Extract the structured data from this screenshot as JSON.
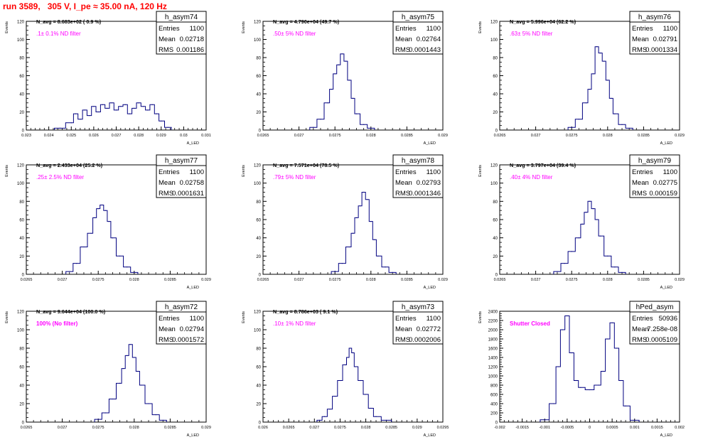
{
  "title": "run 3589,   305 V, I_pe ≈ 35.00 nA, 120 Hz",
  "colors": {
    "histogram": "#000080",
    "annotation": "#ff00ff",
    "title": "#ff0000",
    "frame": "#000000"
  },
  "chart_data": [
    {
      "type": "bar",
      "name": "h_asym74",
      "ylabel": "Events",
      "xlabel": "A_LED",
      "xlim": [
        0.023,
        0.031
      ],
      "ylim": [
        0,
        120
      ],
      "xticks": [
        "0.023",
        "0.024",
        "0.025",
        "0.026",
        "0.027",
        "0.028",
        "0.029",
        "0.03",
        "0.031"
      ],
      "yticks": [
        "0",
        "20",
        "40",
        "60",
        "80",
        "100",
        "120"
      ],
      "nav": "N_avg = 8.683e+02 ( 0.9 %)",
      "note": ".1± 0.1% ND filter",
      "stats": {
        "Entries": "1100",
        "Mean": "0.02718",
        "RMS": "0.001186"
      },
      "x": [
        0.0245,
        0.025,
        0.0252,
        0.0254,
        0.0256,
        0.0258,
        0.026,
        0.0262,
        0.0264,
        0.0266,
        0.0268,
        0.027,
        0.0272,
        0.0274,
        0.0276,
        0.0278,
        0.028,
        0.0282,
        0.0284,
        0.0286,
        0.0288,
        0.029,
        0.0293
      ],
      "values": [
        2,
        8,
        18,
        12,
        22,
        16,
        26,
        20,
        28,
        24,
        30,
        22,
        26,
        28,
        18,
        24,
        30,
        26,
        22,
        28,
        18,
        10,
        3
      ]
    },
    {
      "type": "bar",
      "name": "h_asym75",
      "ylabel": "Events",
      "xlabel": "A_LED",
      "xlim": [
        0.0265,
        0.029
      ],
      "ylim": [
        0,
        120
      ],
      "xticks": [
        "0.0265",
        "0.027",
        "0.0275",
        "0.028",
        "0.0285",
        "0.029"
      ],
      "yticks": [
        "0",
        "20",
        "40",
        "60",
        "80",
        "100",
        "120"
      ],
      "nav": "N_avg = 4.790e+04 (49.7 %)",
      "note": ".50± 5% ND filter",
      "stats": {
        "Entries": "1100",
        "Mean": "0.02764",
        "RMS": "0.0001443"
      },
      "x": [
        0.0272,
        0.0273,
        0.0274,
        0.02745,
        0.0275,
        0.02755,
        0.0276,
        0.02765,
        0.0277,
        0.02775,
        0.0278,
        0.0279,
        0.028
      ],
      "values": [
        3,
        12,
        30,
        45,
        62,
        72,
        84,
        76,
        55,
        35,
        18,
        6,
        2
      ]
    },
    {
      "type": "bar",
      "name": "h_asym76",
      "ylabel": "Events",
      "xlabel": "A_LED",
      "xlim": [
        0.0265,
        0.029
      ],
      "ylim": [
        0,
        120
      ],
      "xticks": [
        "0.0265",
        "0.027",
        "0.0275",
        "0.028",
        "0.0285",
        "0.029"
      ],
      "yticks": [
        "0",
        "20",
        "40",
        "60",
        "80",
        "100",
        "120"
      ],
      "nav": "N_avg = 5.996e+04 (62.2 %)",
      "note": ".63± 5% ND filter",
      "stats": {
        "Entries": "1100",
        "Mean": "0.02791",
        "RMS": "0.0001334"
      },
      "x": [
        0.0275,
        0.0276,
        0.0277,
        0.02775,
        0.0278,
        0.02785,
        0.0279,
        0.02795,
        0.028,
        0.02805,
        0.0281,
        0.0282,
        0.0283
      ],
      "values": [
        3,
        12,
        30,
        45,
        62,
        92,
        85,
        76,
        55,
        35,
        18,
        6,
        2
      ]
    },
    {
      "type": "bar",
      "name": "h_asym77",
      "ylabel": "Events",
      "xlabel": "A_LED",
      "xlim": [
        0.0265,
        0.029
      ],
      "ylim": [
        0,
        120
      ],
      "xticks": [
        "0.0265",
        "0.027",
        "0.0275",
        "0.028",
        "0.0285",
        "0.029"
      ],
      "yticks": [
        "0",
        "20",
        "40",
        "60",
        "80",
        "100",
        "120"
      ],
      "nav": "N_avg = 2.433e+04 (25.2 %)",
      "note": ".25± 2.5% ND filter",
      "stats": {
        "Entries": "1100",
        "Mean": "0.02758",
        "RMS": "0.0001631"
      },
      "x": [
        0.0271,
        0.0272,
        0.0273,
        0.0274,
        0.02745,
        0.0275,
        0.02755,
        0.0276,
        0.02765,
        0.0277,
        0.0278,
        0.0279,
        0.028
      ],
      "values": [
        3,
        12,
        30,
        45,
        62,
        72,
        76,
        70,
        58,
        40,
        20,
        8,
        2
      ]
    },
    {
      "type": "bar",
      "name": "h_asym78",
      "ylabel": "Events",
      "xlabel": "A_LED",
      "xlim": [
        0.0265,
        0.029
      ],
      "ylim": [
        0,
        120
      ],
      "xticks": [
        "0.0265",
        "0.027",
        "0.0275",
        "0.028",
        "0.0285",
        "0.029"
      ],
      "yticks": [
        "0",
        "20",
        "40",
        "60",
        "80",
        "100",
        "120"
      ],
      "nav": "N_avg = 7.571e+04 (78.5 %)",
      "note": ".79± 5% ND filter",
      "stats": {
        "Entries": "1100",
        "Mean": "0.02793",
        "RMS": "0.0001346"
      },
      "x": [
        0.0275,
        0.0276,
        0.0277,
        0.02775,
        0.0278,
        0.02785,
        0.0279,
        0.02795,
        0.028,
        0.02805,
        0.0281,
        0.0282,
        0.0283
      ],
      "values": [
        3,
        12,
        30,
        45,
        62,
        75,
        90,
        82,
        58,
        38,
        20,
        8,
        2
      ]
    },
    {
      "type": "bar",
      "name": "h_asym79",
      "ylabel": "Events",
      "xlabel": "A_LED",
      "xlim": [
        0.0265,
        0.029
      ],
      "ylim": [
        0,
        120
      ],
      "xticks": [
        "0.0265",
        "0.027",
        "0.0275",
        "0.028",
        "0.0285",
        "0.029"
      ],
      "yticks": [
        "0",
        "20",
        "40",
        "60",
        "80",
        "100",
        "120"
      ],
      "nav": "N_avg = 3.797e+04 (39.4 %)",
      "note": ".40± 4% ND filter",
      "stats": {
        "Entries": "1100",
        "Mean": "0.02775",
        "RMS": "0.000159"
      },
      "x": [
        0.0273,
        0.0274,
        0.0275,
        0.0276,
        0.02765,
        0.0277,
        0.02775,
        0.0278,
        0.02785,
        0.0279,
        0.028,
        0.0281,
        0.0282
      ],
      "values": [
        3,
        12,
        25,
        40,
        55,
        68,
        80,
        72,
        60,
        42,
        20,
        8,
        2
      ]
    },
    {
      "type": "bar",
      "name": "h_asym72",
      "ylabel": "Events",
      "xlabel": "A_LED",
      "xlim": [
        0.0265,
        0.029
      ],
      "ylim": [
        0,
        120
      ],
      "xticks": [
        "0.0265",
        "0.027",
        "0.0275",
        "0.028",
        "0.0285",
        "0.029"
      ],
      "yticks": [
        "0",
        "20",
        "40",
        "60",
        "80",
        "100",
        "120"
      ],
      "nav": "N_avg = 9.644e+04 (100.0 %)",
      "note": "100% (No filter)",
      "stats": {
        "Entries": "1100",
        "Mean": "0.02794",
        "RMS": "0.0001572"
      },
      "x": [
        0.0275,
        0.0276,
        0.0277,
        0.0278,
        0.02785,
        0.0279,
        0.02795,
        0.028,
        0.02805,
        0.0281,
        0.0282,
        0.0283,
        0.0284
      ],
      "values": [
        3,
        10,
        25,
        42,
        58,
        72,
        84,
        70,
        55,
        40,
        20,
        8,
        2
      ]
    },
    {
      "type": "bar",
      "name": "h_asym73",
      "ylabel": "Events",
      "xlabel": "A_LED",
      "xlim": [
        0.026,
        0.0295
      ],
      "ylim": [
        0,
        120
      ],
      "xticks": [
        "0.026",
        "0.0265",
        "0.027",
        "0.0275",
        "0.028",
        "0.0285",
        "0.029",
        "0.0295"
      ],
      "yticks": [
        "0",
        "20",
        "40",
        "60",
        "80",
        "100",
        "120"
      ],
      "nav": "N_avg = 8.786e+03 ( 9.1 %)",
      "note": ".10± 1% ND filter",
      "stats": {
        "Entries": "1100",
        "Mean": "0.02772",
        "RMS": "0.0002006"
      },
      "x": [
        0.0271,
        0.0272,
        0.0273,
        0.0274,
        0.0275,
        0.0276,
        0.02765,
        0.0277,
        0.02775,
        0.0278,
        0.0279,
        0.028,
        0.0281,
        0.0282,
        0.0284
      ],
      "values": [
        2,
        6,
        14,
        28,
        45,
        62,
        70,
        80,
        75,
        60,
        45,
        30,
        15,
        6,
        2
      ]
    },
    {
      "type": "bar",
      "name": "hPed_asym",
      "ylabel": "Events",
      "xlabel": "A_LED",
      "xlim": [
        -0.002,
        0.002
      ],
      "ylim": [
        0,
        2400
      ],
      "xticks": [
        "-0.002",
        "-0.0015",
        "-0.001",
        "-0.0005",
        "0",
        "0.0005",
        "0.001",
        "0.0015",
        "0.002"
      ],
      "yticks": [
        "0",
        "200",
        "400",
        "600",
        "800",
        "1000",
        "1200",
        "1400",
        "1600",
        "1800",
        "2000",
        "2200",
        "2400"
      ],
      "nav": "",
      "note": "Shutter Closed",
      "stats": {
        "Entries": "50936",
        "Mean": "7.258e-08",
        "RMS": "0.0005109"
      },
      "x": [
        -0.001,
        -0.0008,
        -0.0007,
        -0.0006,
        -0.0005,
        -0.0004,
        -0.0003,
        -0.0002,
        0.0,
        0.0002,
        0.0003,
        0.0004,
        0.0005,
        0.0006,
        0.0007,
        0.0008,
        0.001
      ],
      "values": [
        50,
        400,
        1200,
        2000,
        2300,
        1500,
        900,
        750,
        700,
        800,
        1100,
        1800,
        2150,
        1600,
        900,
        350,
        40
      ]
    }
  ]
}
